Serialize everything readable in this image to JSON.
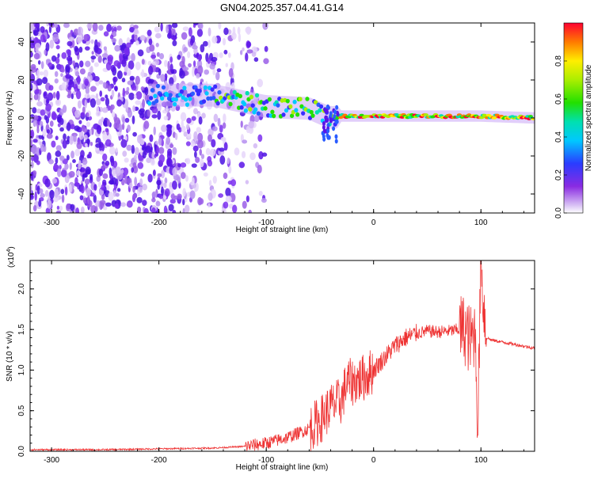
{
  "title": "GN04.2025.357.04.41.G14",
  "colors": {
    "snr_line": "#ee3333",
    "axis": "#000000",
    "background": "#ffffff"
  },
  "chart_data": [
    {
      "type": "heatmap",
      "name": "spectrogram",
      "xlabel": "Height of straight line (km)",
      "ylabel": "Frequency (Hz)",
      "xlim": [
        -320,
        150
      ],
      "ylim": [
        -50,
        50
      ],
      "x_ticks": [
        -300,
        -200,
        -100,
        0,
        100
      ],
      "y_ticks": [
        -40,
        -20,
        0,
        20,
        40
      ],
      "colorbar": {
        "label": "Normalized spectral amplitude",
        "range": [
          0.0,
          1.0
        ],
        "ticks": [
          0.0,
          0.2,
          0.4,
          0.6,
          0.8
        ],
        "tick_labels": [
          "0.0",
          "0.2",
          "0.4",
          "0.6",
          "0.8"
        ],
        "colormap": "rainbow (white - violet - blue - cyan - green - yellow - red)"
      },
      "features": {
        "noise_region_x": [
          -320,
          -130
        ],
        "tracked_signal_start_x": -210,
        "tracked_signal_frequency_at_x": [
          [
            -210,
            12
          ],
          [
            -150,
            12
          ],
          [
            -100,
            6
          ],
          [
            -60,
            5
          ],
          [
            -40,
            0
          ],
          [
            -30,
            1
          ],
          [
            0,
            1
          ],
          [
            100,
            1
          ],
          [
            150,
            0
          ]
        ]
      }
    },
    {
      "type": "line",
      "name": "snr",
      "xlabel": "Height of straight line (km)",
      "ylabel": "SNR (10 * v/v)",
      "y_multiplier_label": "(x10",
      "y_multiplier_exp": "4",
      "y_multiplier_close": ")",
      "xlim": [
        -320,
        150
      ],
      "ylim": [
        0,
        2.35
      ],
      "x_ticks": [
        -300,
        -200,
        -100,
        0,
        100
      ],
      "y_ticks": [
        0.0,
        0.5,
        1.0,
        1.5,
        2.0
      ],
      "y_tick_labels": [
        "0.0",
        "0.5",
        "1.0",
        "1.5",
        "2.0"
      ],
      "series": [
        {
          "x": [
            -320,
            -250,
            -200,
            -150,
            -120,
            -100,
            -80,
            -60,
            -50,
            -40,
            -30,
            -25,
            -20,
            -10,
            0,
            10,
            20,
            30,
            40,
            50,
            60,
            70,
            80,
            85,
            90,
            95,
            97,
            100,
            105,
            110,
            130,
            150
          ],
          "y": [
            0.02,
            0.02,
            0.03,
            0.04,
            0.06,
            0.1,
            0.17,
            0.28,
            0.38,
            0.55,
            0.62,
            0.85,
            0.85,
            0.9,
            1.0,
            1.15,
            1.3,
            1.4,
            1.45,
            1.48,
            1.47,
            1.48,
            1.5,
            1.5,
            1.35,
            1.5,
            0.3,
            2.25,
            1.4,
            1.37,
            1.32,
            1.27
          ]
        }
      ]
    }
  ]
}
